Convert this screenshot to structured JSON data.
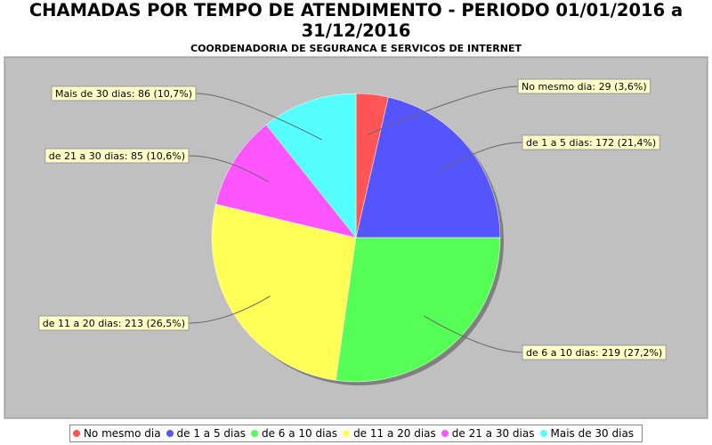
{
  "chart_data": {
    "type": "pie",
    "title": "CHAMADAS POR TEMPO DE ATENDIMENTO - PERIODO 01/01/2016 a 31/12/2016",
    "subtitle": "COORDENADORIA DE SEGURANCA E SERVICOS DE INTERNET",
    "categories": [
      "No mesmo dia",
      "de 1 a 5 dias",
      "de 6 a 10 dias",
      "de 11 a 20 dias",
      "de 21 a 30 dias",
      "Mais de 30 dias"
    ],
    "values": [
      29,
      172,
      219,
      213,
      85,
      86
    ],
    "value_labels": [
      "No mesmo dia: 29 (3,6%)",
      "de 1 a 5 dias: 172 (21,4%)",
      "de 6 a 10 dias: 219 (27,2%)",
      "de 11 a 20 dias: 213 (26,5%)",
      "de 21 a 30 dias: 85 (10,6%)",
      "Mais de 30 dias: 86 (10,7%)"
    ],
    "colors": [
      "#ff5555",
      "#5555ff",
      "#55ff55",
      "#ffff55",
      "#ff55ff",
      "#55ffff"
    ],
    "legend": "bottom"
  }
}
